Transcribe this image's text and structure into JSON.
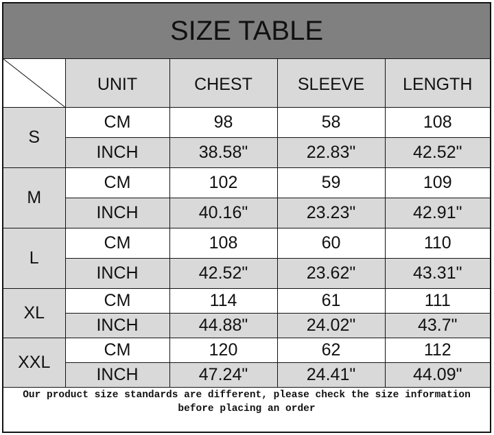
{
  "title": "SIZE TABLE",
  "headers": [
    "UNIT",
    "CHEST",
    "SLEEVE",
    "LENGTH"
  ],
  "rows": [
    {
      "size": "S",
      "cm": {
        "unit": "CM",
        "chest": "98",
        "sleeve": "58",
        "length": "108"
      },
      "inch": {
        "unit": "INCH",
        "chest": "38.58\"",
        "sleeve": "22.83\"",
        "length": "42.52\""
      }
    },
    {
      "size": "M",
      "cm": {
        "unit": "CM",
        "chest": "102",
        "sleeve": "59",
        "length": "109"
      },
      "inch": {
        "unit": "INCH",
        "chest": "40.16\"",
        "sleeve": "23.23\"",
        "length": "42.91\""
      }
    },
    {
      "size": "L",
      "cm": {
        "unit": "CM",
        "chest": "108",
        "sleeve": "60",
        "length": "110"
      },
      "inch": {
        "unit": "INCH",
        "chest": "42.52\"",
        "sleeve": "23.62\"",
        "length": "43.31\""
      }
    },
    {
      "size": "XL",
      "cm": {
        "unit": "CM",
        "chest": "114",
        "sleeve": "61",
        "length": "111"
      },
      "inch": {
        "unit": "INCH",
        "chest": "44.88\"",
        "sleeve": "24.02\"",
        "length": "43.7\""
      }
    },
    {
      "size": "XXL",
      "cm": {
        "unit": "CM",
        "chest": "120",
        "sleeve": "62",
        "length": "112"
      },
      "inch": {
        "unit": "INCH",
        "chest": "47.24\"",
        "sleeve": "24.41\"",
        "length": "44.09\""
      }
    }
  ],
  "footer": {
    "line1": "Our product size standards are different, please check the size information",
    "line2": "before placing an order"
  },
  "colors": {
    "title_bg": "#808080",
    "cell_gray": "#d9d9d9",
    "border": "#111111"
  }
}
